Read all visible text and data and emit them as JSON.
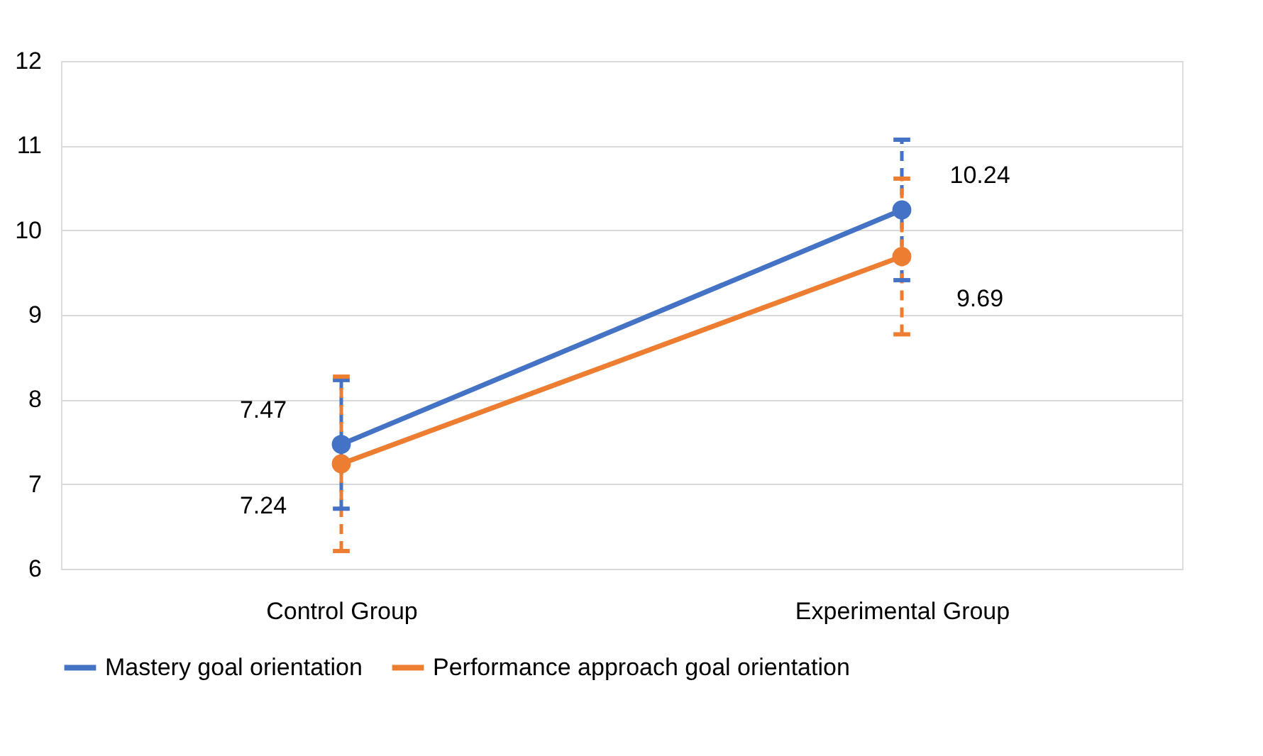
{
  "chart_data": {
    "type": "line",
    "categories": [
      "Control Group",
      "Experimental Group"
    ],
    "series": [
      {
        "name": "Mastery goal orientation",
        "color": "#4472c4",
        "values": [
          7.47,
          10.24
        ],
        "errors": [
          0.76,
          0.83
        ]
      },
      {
        "name": "Performance approach goal orientation",
        "color": "#ed7d31",
        "values": [
          7.24,
          9.69
        ],
        "errors": [
          1.03,
          0.92
        ]
      }
    ],
    "ylim": [
      6,
      12
    ],
    "yticks": [
      6,
      7,
      8,
      9,
      10,
      11,
      12
    ],
    "grid": "y",
    "legend": "bottom",
    "marker": "circle",
    "line_style": "solid",
    "data_labels": true
  }
}
